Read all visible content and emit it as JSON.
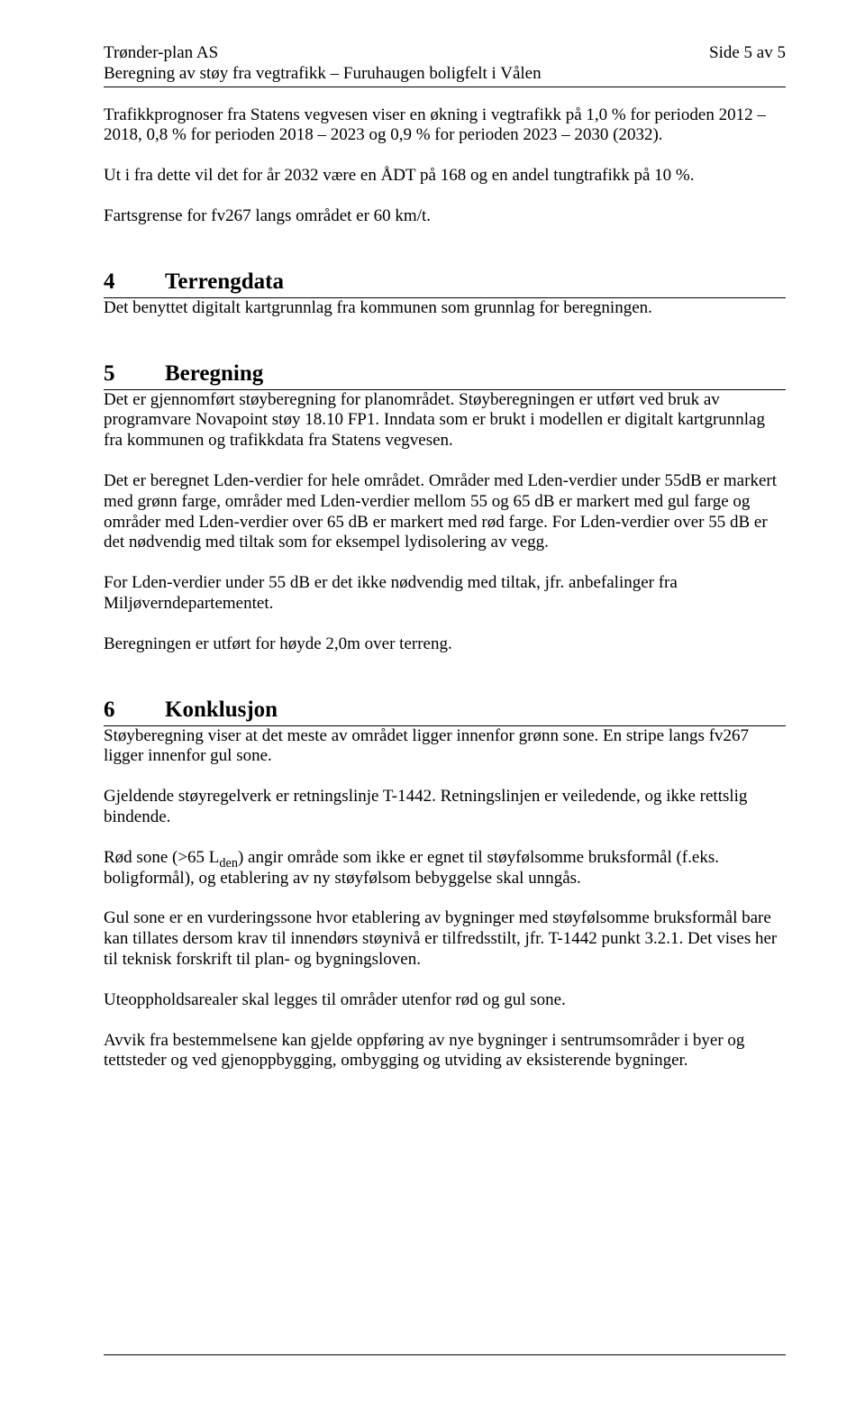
{
  "header": {
    "company": "Trønder-plan AS",
    "subtitle": "Beregning av støy fra vegtrafikk – Furuhaugen boligfelt i Vålen",
    "page_label": "Side 5 av 5"
  },
  "intro": {
    "p1": "Trafikkprognoser fra Statens vegvesen viser en økning i vegtrafikk på 1,0 % for perioden 2012 – 2018, 0,8 % for perioden 2018 – 2023 og 0,9 % for perioden 2023 – 2030 (2032).",
    "p2": "Ut i fra dette vil det for år 2032 være en ÅDT på 168 og en andel tungtrafikk på 10 %.",
    "p3": "Fartsgrense for fv267 langs området er 60 km/t."
  },
  "s4": {
    "num": "4",
    "title": "Terrengdata",
    "p1": "Det benyttet digitalt kartgrunnlag fra kommunen som grunnlag for beregningen."
  },
  "s5": {
    "num": "5",
    "title": "Beregning",
    "p1": "Det er gjennomført støyberegning for planområdet. Støyberegningen er utført ved bruk av programvare Novapoint støy 18.10 FP1. Inndata som er brukt i modellen er digitalt kartgrunnlag fra kommunen og trafikkdata fra Statens vegvesen.",
    "p2": "Det er beregnet Lden-verdier for hele området. Områder med Lden-verdier under 55dB er markert med grønn farge, områder med Lden-verdier mellom 55 og 65 dB er markert med gul farge og områder med Lden-verdier over 65 dB er markert med rød farge. For Lden-verdier over 55 dB er det nødvendig med tiltak som for eksempel lydisolering av vegg.",
    "p3": "For Lden-verdier under 55 dB er det ikke nødvendig med tiltak, jfr. anbefalinger fra Miljøverndepartementet.",
    "p4": "Beregningen er utført for høyde 2,0m over terreng."
  },
  "s6": {
    "num": "6",
    "title": "Konklusjon",
    "p1": "Støyberegning viser at det meste av området ligger innenfor grønn sone. En stripe langs fv267 ligger innenfor gul sone.",
    "p2": "Gjeldende støyregelverk er retningslinje T-1442. Retningslinjen er veiledende, og ikke rettslig bindende.",
    "p3_pre": "Rød sone (>65 L",
    "p3_sub": "den",
    "p3_post": ") angir område som ikke er egnet til støyfølsomme bruksformål (f.eks. boligformål), og etablering av ny støyfølsom bebyggelse skal unngås.",
    "p4": "Gul sone er en vurderingssone hvor etablering av bygninger med støyfølsomme bruksformål bare kan tillates dersom krav til innendørs støynivå er tilfredsstilt, jfr. T-1442 punkt 3.2.1. Det vises her til teknisk forskrift til plan- og bygningsloven.",
    "p5": "Uteoppholdsarealer skal legges til områder utenfor rød og gul sone.",
    "p6": "Avvik fra bestemmelsene kan gjelde oppføring av nye bygninger i sentrumsområder i byer og tettsteder og ved gjenoppbygging, ombygging og utviding av eksisterende bygninger."
  }
}
